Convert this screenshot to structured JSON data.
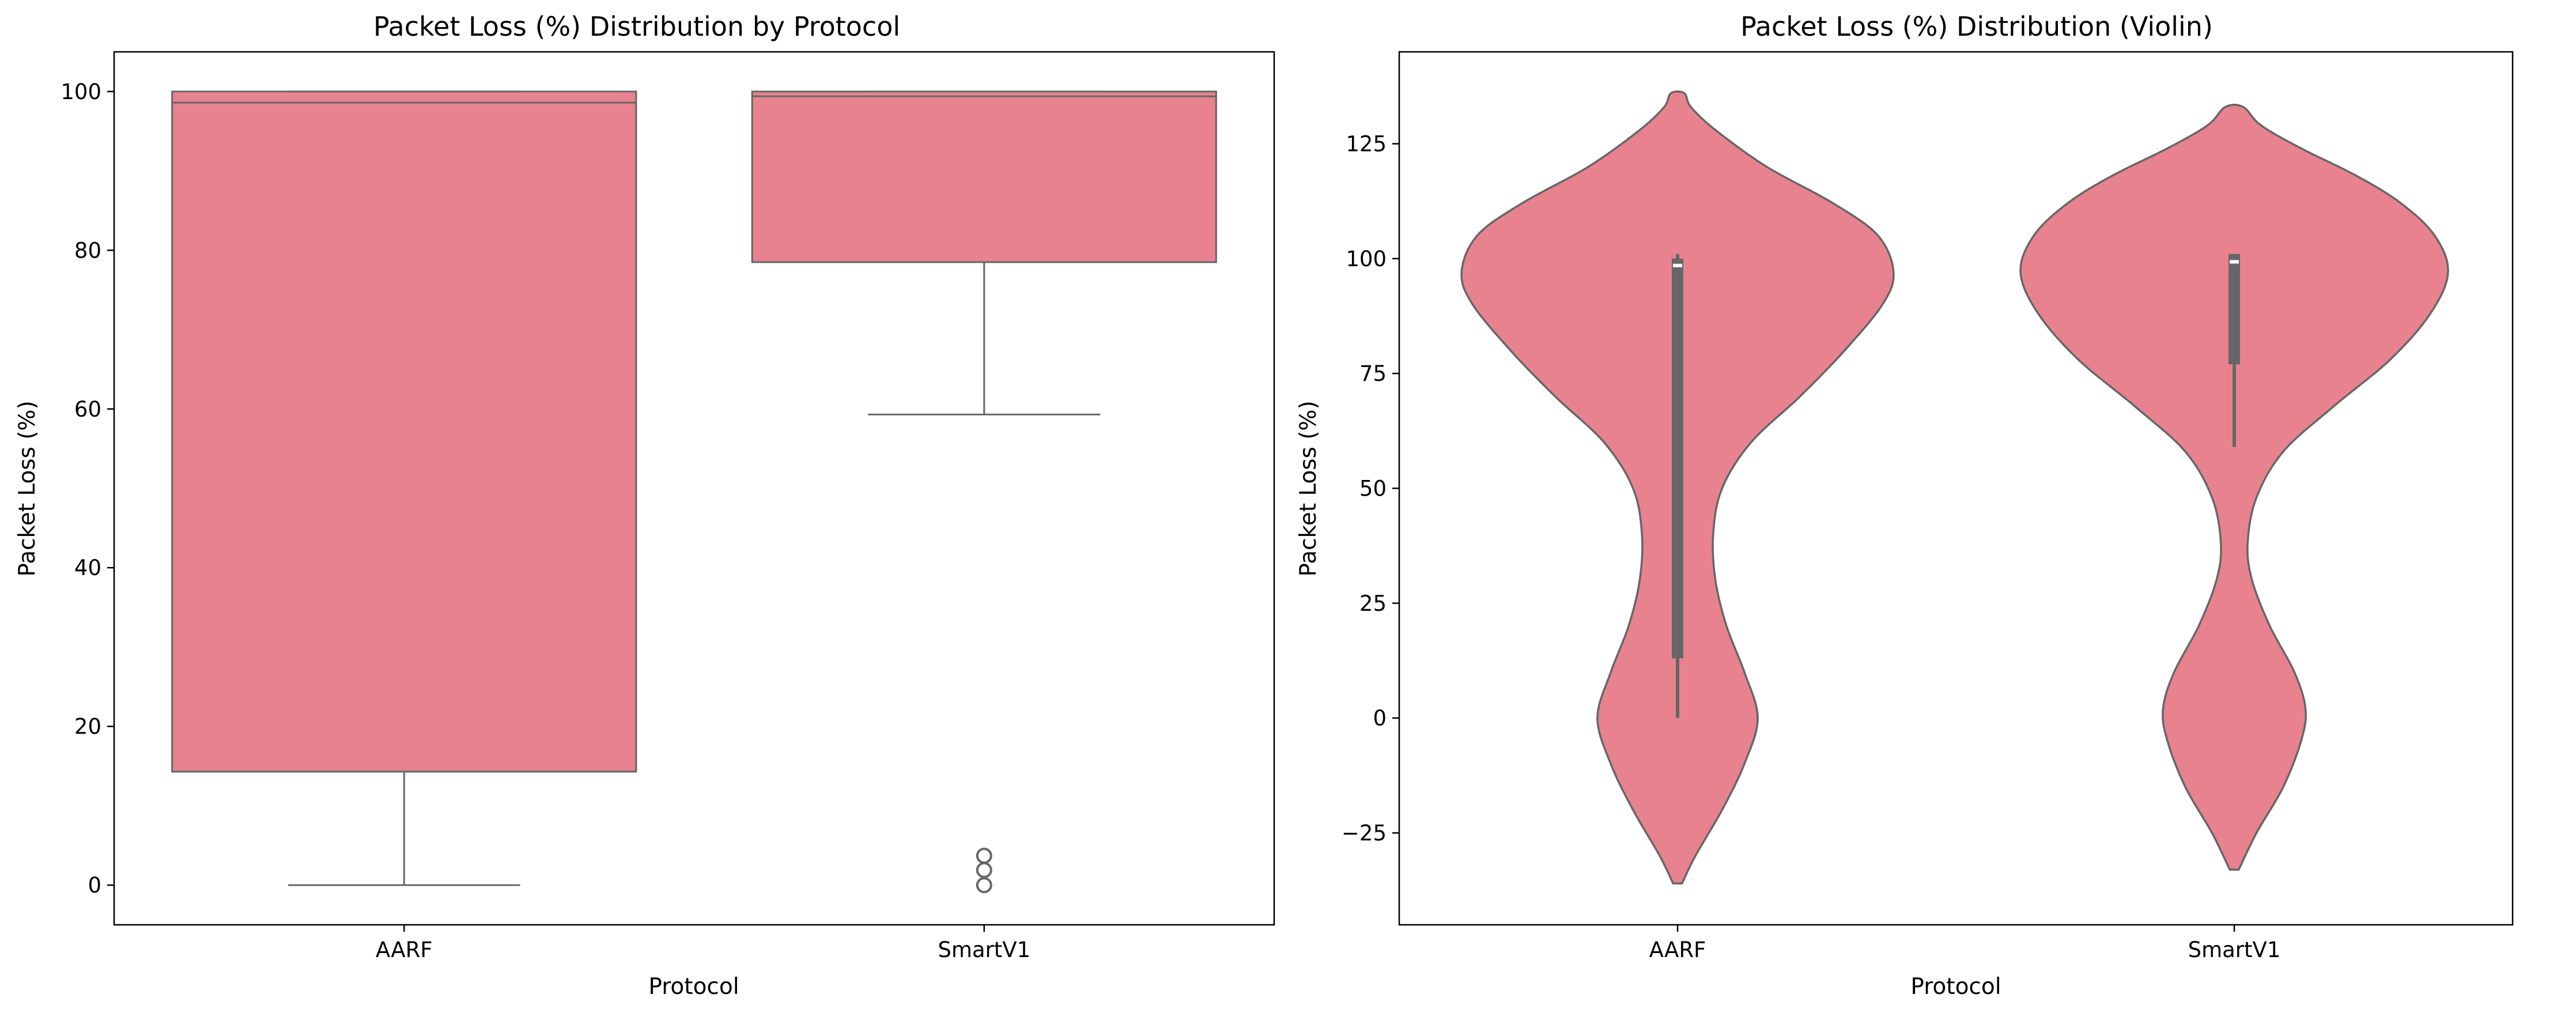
{
  "figure": {
    "background": "#ffffff"
  },
  "style": {
    "fill_color": "#e8828f",
    "line_color": "#666666",
    "median_marker_color": "#ffffff"
  },
  "chart_data": [
    {
      "type": "box",
      "title": "Packet Loss (%) Distribution by Protocol",
      "xlabel": "Protocol",
      "ylabel": "Packet Loss (%)",
      "categories": [
        "AARF",
        "SmartV1"
      ],
      "ylim": [
        -5,
        105
      ],
      "yticks": [
        0,
        20,
        40,
        60,
        80,
        100
      ],
      "grid": false,
      "boxes": [
        {
          "category": "AARF",
          "q1": 14.3,
          "median": 98.6,
          "q3": 100,
          "whisker_low": 0,
          "whisker_high": 100,
          "outliers": []
        },
        {
          "category": "SmartV1",
          "q1": 78.5,
          "median": 99.4,
          "q3": 100,
          "whisker_low": 59.3,
          "whisker_high": 100,
          "outliers": [
            0,
            1.9,
            3.7
          ]
        }
      ]
    },
    {
      "type": "violin",
      "title": "Packet Loss (%) Distribution (Violin)",
      "xlabel": "Protocol",
      "ylabel": "Packet Loss (%)",
      "categories": [
        "AARF",
        "SmartV1"
      ],
      "ylim": [
        -45,
        145
      ],
      "yticks": [
        -25,
        0,
        25,
        50,
        75,
        100,
        125
      ],
      "grid": false,
      "violins": [
        {
          "category": "AARF",
          "range": [
            -36,
            136
          ],
          "density_profile": [
            [
              -36,
              0.02
            ],
            [
              -30,
              0.08
            ],
            [
              -20,
              0.2
            ],
            [
              -10,
              0.3
            ],
            [
              0,
              0.36
            ],
            [
              10,
              0.3
            ],
            [
              20,
              0.22
            ],
            [
              30,
              0.17
            ],
            [
              40,
              0.16
            ],
            [
              50,
              0.2
            ],
            [
              60,
              0.33
            ],
            [
              70,
              0.55
            ],
            [
              80,
              0.75
            ],
            [
              90,
              0.92
            ],
            [
              97,
              0.97
            ],
            [
              105,
              0.9
            ],
            [
              112,
              0.7
            ],
            [
              120,
              0.4
            ],
            [
              128,
              0.17
            ],
            [
              133,
              0.06
            ],
            [
              136,
              0.03
            ]
          ],
          "q1": 13,
          "median": 98.5,
          "q3": 100,
          "whisker_low": 0,
          "whisker_high": 101
        },
        {
          "category": "SmartV1",
          "range": [
            -33,
            133
          ],
          "density_profile": [
            [
              -33,
              0.02
            ],
            [
              -25,
              0.1
            ],
            [
              -15,
              0.22
            ],
            [
              -5,
              0.3
            ],
            [
              2,
              0.32
            ],
            [
              10,
              0.27
            ],
            [
              20,
              0.16
            ],
            [
              30,
              0.08
            ],
            [
              38,
              0.06
            ],
            [
              48,
              0.1
            ],
            [
              58,
              0.22
            ],
            [
              68,
              0.45
            ],
            [
              78,
              0.7
            ],
            [
              88,
              0.88
            ],
            [
              97,
              0.96
            ],
            [
              105,
              0.9
            ],
            [
              112,
              0.75
            ],
            [
              118,
              0.55
            ],
            [
              124,
              0.3
            ],
            [
              129,
              0.12
            ],
            [
              133,
              0.04
            ]
          ],
          "q1": 77,
          "median": 99.3,
          "q3": 101,
          "whisker_low": 59,
          "whisker_high": 101
        }
      ]
    }
  ]
}
